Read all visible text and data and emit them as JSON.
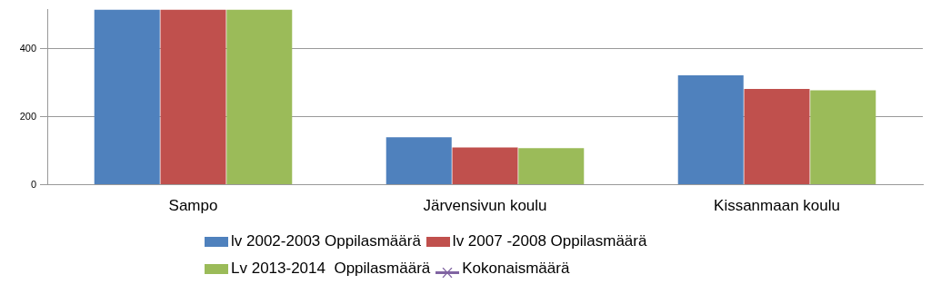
{
  "chart_data": {
    "type": "bar",
    "categories": [
      "Sampo",
      "Järvensivun koulu",
      "Kissanmaan koulu"
    ],
    "series": [
      {
        "name": "lv 2002-2003 Oppilasmäärä",
        "color": "#4f81bd",
        "values": [
          515,
          140,
          322
        ]
      },
      {
        "name": "lv 2007 -2008 Oppilasmäärä",
        "color": "#c0504d",
        "values": [
          515,
          110,
          282
        ]
      },
      {
        "name": "Lv 2013-2014  Oppilasmäärä",
        "color": "#9bbb59",
        "values": [
          515,
          108,
          278
        ]
      },
      {
        "name": "Kokonaismäärä",
        "color": "#8064a2",
        "type": "line",
        "marker": "cross",
        "values": [
          null,
          null,
          null
        ]
      }
    ],
    "ylim": [
      0,
      515
    ],
    "yticks": [
      0,
      200,
      400
    ],
    "grid": "y",
    "legend": "bottom"
  }
}
